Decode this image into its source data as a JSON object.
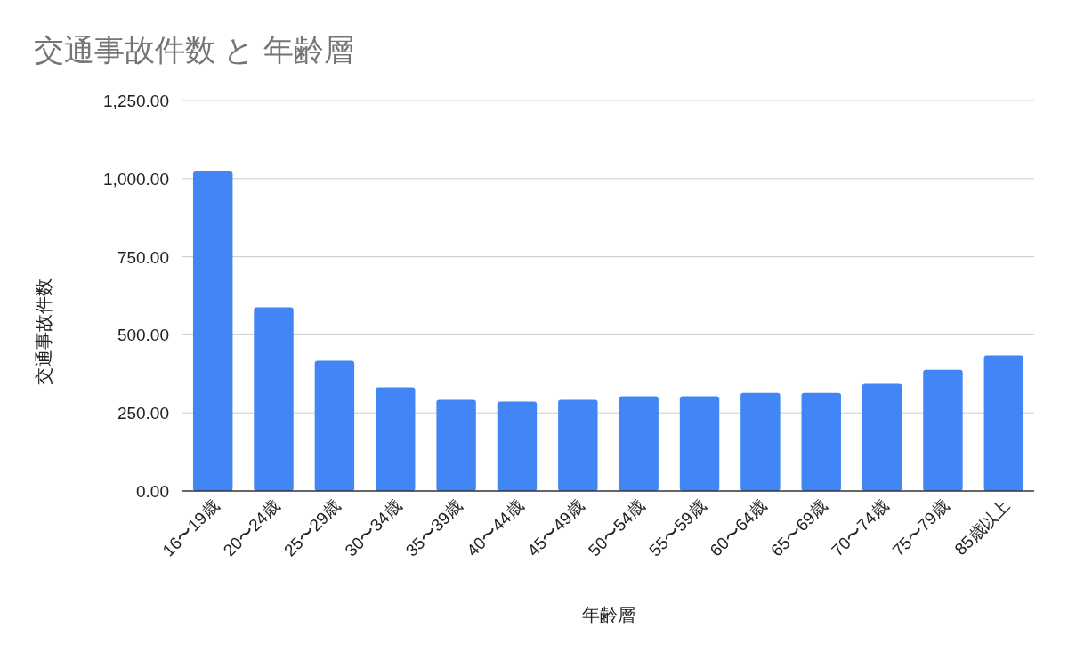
{
  "chart_data": {
    "type": "bar",
    "title": "交通事故件数 と 年齢層",
    "xlabel": "年齢層",
    "ylabel": "交通事故件数",
    "categories": [
      "16〜19歳",
      "20〜24歳",
      "25〜29歳",
      "30〜34歳",
      "35〜39歳",
      "40〜44歳",
      "45〜49歳",
      "50〜54歳",
      "55〜59歳",
      "60〜64歳",
      "65〜69歳",
      "70〜74歳",
      "75〜79歳",
      "85歳以上"
    ],
    "values": [
      1025,
      588,
      417,
      332,
      292,
      286,
      292,
      303,
      303,
      314,
      314,
      343,
      388,
      434
    ],
    "color": "#4285f4",
    "ylim": [
      0,
      1250
    ],
    "yticks": [
      {
        "value": 0,
        "label": "0.00"
      },
      {
        "value": 250,
        "label": "250.00"
      },
      {
        "value": 500,
        "label": "500.00"
      },
      {
        "value": 750,
        "label": "750.00"
      },
      {
        "value": 1000,
        "label": "1,000.00"
      },
      {
        "value": 1250,
        "label": "1,250.00"
      }
    ],
    "grid": "y"
  }
}
